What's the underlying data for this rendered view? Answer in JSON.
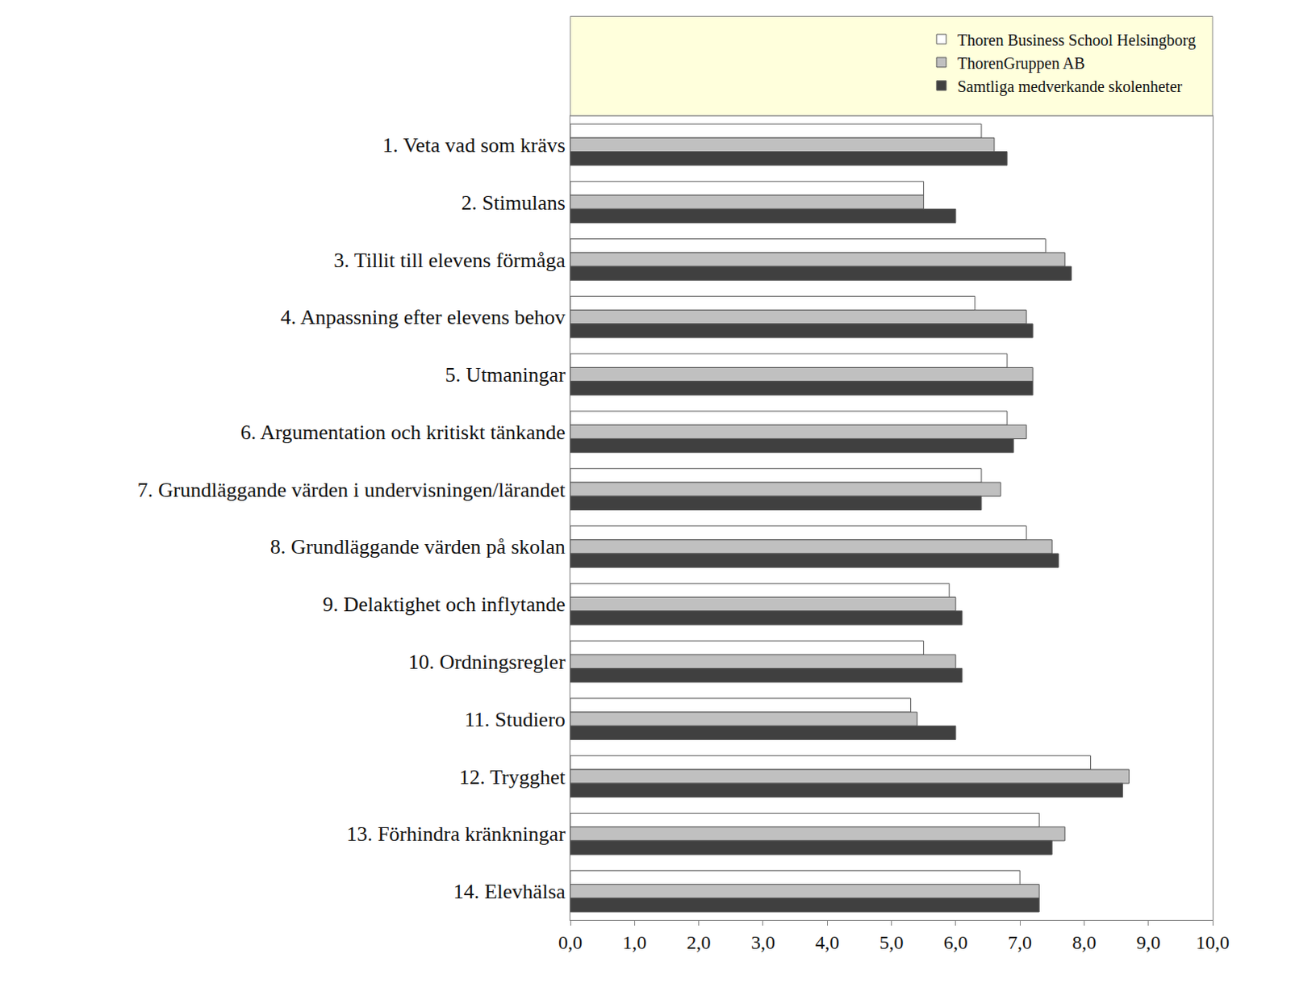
{
  "chart_data": {
    "type": "bar",
    "orientation": "horizontal",
    "categories": [
      "1. Veta vad som krävs",
      "2. Stimulans",
      "3. Tillit till elevens förmåga",
      "4. Anpassning efter elevens behov",
      "5. Utmaningar",
      "6. Argumentation och kritiskt tänkande",
      "7. Grundläggande värden i undervisningen/lärandet",
      "8. Grundläggande värden på skolan",
      "9. Delaktighet och inflytande",
      "10. Ordningsregler",
      "11. Studiero",
      "12. Trygghet",
      "13. Förhindra kränkningar",
      "14. Elevhälsa"
    ],
    "series": [
      {
        "name": "Thoren Business School Helsingborg",
        "color": "#ffffff",
        "values": [
          6.4,
          5.5,
          7.4,
          6.3,
          6.8,
          6.8,
          6.4,
          7.1,
          5.9,
          5.5,
          5.3,
          8.1,
          7.3,
          7.0
        ]
      },
      {
        "name": "ThorenGruppen AB",
        "color": "#c0c0c0",
        "values": [
          6.6,
          5.5,
          7.7,
          7.1,
          7.2,
          7.1,
          6.7,
          7.5,
          6.0,
          6.0,
          5.4,
          8.7,
          7.7,
          7.3
        ]
      },
      {
        "name": "Samtliga medverkande skolenheter",
        "color": "#404040",
        "values": [
          6.8,
          6.0,
          7.8,
          7.2,
          7.2,
          6.9,
          6.4,
          7.6,
          6.1,
          6.1,
          6.0,
          8.6,
          7.5,
          7.3
        ]
      }
    ],
    "xlim": [
      0,
      10
    ],
    "xticks": [
      {
        "value": 0,
        "label": "0,0"
      },
      {
        "value": 1,
        "label": "1,0"
      },
      {
        "value": 2,
        "label": "2,0"
      },
      {
        "value": 3,
        "label": "3,0"
      },
      {
        "value": 4,
        "label": "4,0"
      },
      {
        "value": 5,
        "label": "5,0"
      },
      {
        "value": 6,
        "label": "6,0"
      },
      {
        "value": 7,
        "label": "7,0"
      },
      {
        "value": 8,
        "label": "8,0"
      },
      {
        "value": 9,
        "label": "9,0"
      },
      {
        "value": 10,
        "label": "10,0"
      }
    ],
    "grid": false,
    "legend": "top-right"
  }
}
